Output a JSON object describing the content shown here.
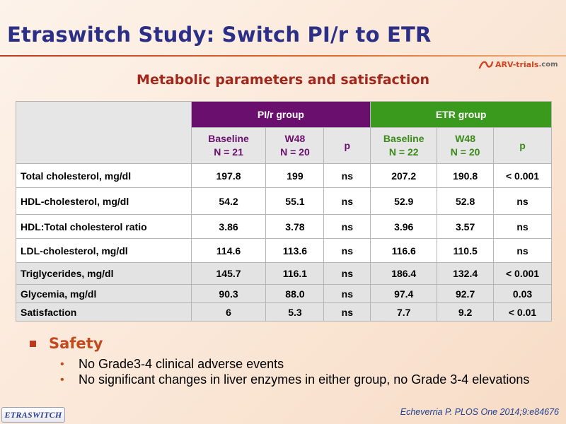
{
  "title": "Etraswitch Study: Switch PI/r to ETR",
  "logo": {
    "brand": "ARV-trials",
    "domain": ".com"
  },
  "subtitle": "Metabolic parameters and satisfaction",
  "table": {
    "groups": [
      "PI/r group",
      "ETR group"
    ],
    "subheaders": [
      {
        "line1": "Baseline",
        "line2": "N = 21"
      },
      {
        "line1": "W48",
        "line2": "N = 20"
      },
      {
        "line1": "p",
        "line2": ""
      },
      {
        "line1": "Baseline",
        "line2": "N = 22"
      },
      {
        "line1": "W48",
        "line2": "N = 20"
      },
      {
        "line1": "p",
        "line2": ""
      }
    ],
    "rows": [
      {
        "label": "Total cholesterol, mg/dl",
        "values": [
          "197.8",
          "199",
          "ns",
          "207.2",
          "190.8",
          "< 0.001"
        ],
        "shade": "white"
      },
      {
        "label": "HDL-cholesterol, mg/dl",
        "values": [
          "54.2",
          "55.1",
          "ns",
          "52.9",
          "52.8",
          "ns"
        ],
        "shade": "white"
      },
      {
        "label": "HDL:Total cholesterol ratio",
        "values": [
          "3.86",
          "3.78",
          "ns",
          "3.96",
          "3.57",
          "ns"
        ],
        "shade": "white"
      },
      {
        "label": "LDL-cholesterol, mg/dl",
        "values": [
          "114.6",
          "113.6",
          "ns",
          "116.6",
          "110.5",
          "ns"
        ],
        "shade": "white"
      },
      {
        "label": "Triglycerides, mg/dl",
        "values": [
          "145.7",
          "116.1",
          "ns",
          "186.4",
          "132.4",
          "< 0.001"
        ],
        "shade": "grey"
      },
      {
        "label": "Glycemia, mg/dl",
        "values": [
          "90.3",
          "88.0",
          "ns",
          "97.4",
          "92.7",
          "0.03"
        ],
        "shade": "grey"
      },
      {
        "label": "Satisfaction",
        "values": [
          "6",
          "5.3",
          "ns",
          "7.7",
          "9.2",
          "< 0.01"
        ],
        "shade": "grey"
      }
    ]
  },
  "safety": {
    "heading": "Safety",
    "bullets": [
      "No Grade3-4 clinical adverse events",
      "No significant changes in liver enzymes in either group, no Grade 3-4 elevations"
    ]
  },
  "citation": "Echeverria P. PLOS One 2014;9:e84676",
  "badge": "ETRASWITCH",
  "colors": {
    "pir": "#6b0f6f",
    "etr": "#3a9a1e",
    "title": "#2b2f86",
    "accent": "#c24a1f"
  }
}
